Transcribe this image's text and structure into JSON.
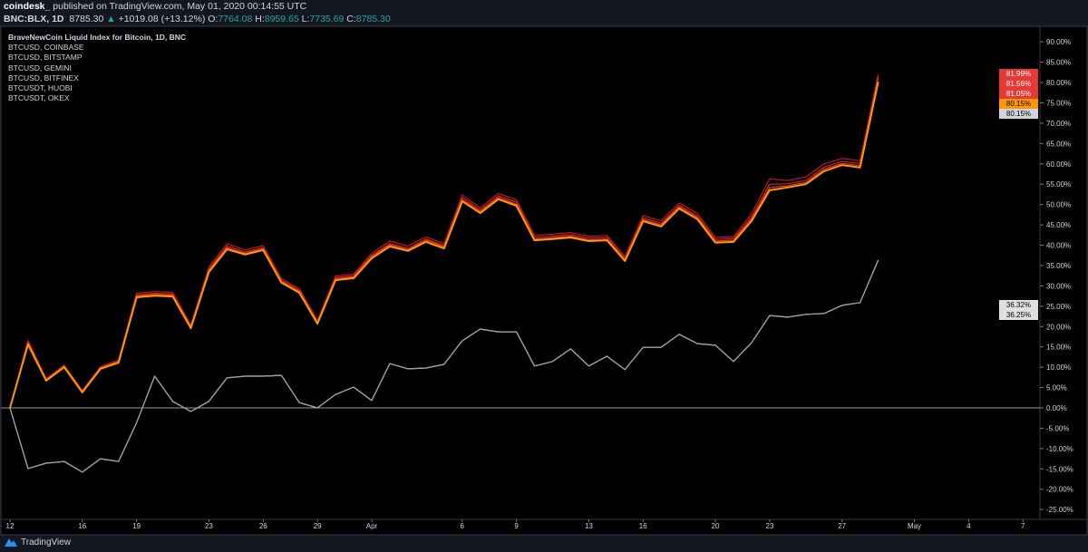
{
  "header": {
    "author": "coindesk_",
    "published": "published on TradingView.com, May 01, 2020 00:14:55 UTC",
    "symbol": "BNC:BLX, 1D",
    "last": "8785.30",
    "change": "+1019.08 (+13.12%)",
    "o_label": "O:",
    "o": "7764.08",
    "h_label": "H:",
    "h": "8959.65",
    "l_label": "L:",
    "l": "7735.69",
    "c_label": "C:",
    "c": "8785.30"
  },
  "legend": {
    "title": "BraveNewCoin Liquid Index for Bitcoin, 1D, BNC",
    "items": [
      "BTCUSD, COINBASE",
      "BTCUSD, BITSTAMP",
      "BTCUSD, GEMINI",
      "BTCUSD, BITFINEX",
      "BTCUSDT, HUOBI",
      "BTCUSDT, OKEX"
    ]
  },
  "footer": {
    "brand": "TradingView",
    "logo_icon": "tradingview-logo-icon"
  },
  "colors": {
    "background": "#000000",
    "panel": "#131722",
    "red": "#e53935",
    "orange": "#ff9800",
    "white": "#d1d4dc",
    "green": "#26a69a"
  },
  "chart_data": {
    "type": "line",
    "ylim": [
      -25,
      90
    ],
    "y_ticks": [
      "90.00%",
      "85.00%",
      "80.00%",
      "75.00%",
      "70.00%",
      "65.00%",
      "60.00%",
      "55.00%",
      "50.00%",
      "45.00%",
      "40.00%",
      "35.00%",
      "30.00%",
      "25.00%",
      "20.00%",
      "15.00%",
      "10.00%",
      "5.00%",
      "0.00%",
      "-5.00%",
      "-10.00%",
      "-15.00%",
      "-20.00%",
      "-25.00%"
    ],
    "x_start": "2020-03-12",
    "x_end_axis": "2020-05-09",
    "x_ticks": [
      {
        "label": "12",
        "date": "2020-03-12"
      },
      {
        "label": "16",
        "date": "2020-03-16"
      },
      {
        "label": "19",
        "date": "2020-03-19"
      },
      {
        "label": "23",
        "date": "2020-03-23"
      },
      {
        "label": "26",
        "date": "2020-03-26"
      },
      {
        "label": "29",
        "date": "2020-03-29"
      },
      {
        "label": "Apr",
        "date": "2020-04-01"
      },
      {
        "label": "6",
        "date": "2020-04-06"
      },
      {
        "label": "9",
        "date": "2020-04-09"
      },
      {
        "label": "13",
        "date": "2020-04-13"
      },
      {
        "label": "16",
        "date": "2020-04-16"
      },
      {
        "label": "20",
        "date": "2020-04-20"
      },
      {
        "label": "23",
        "date": "2020-04-23"
      },
      {
        "label": "27",
        "date": "2020-04-27"
      },
      {
        "label": "May",
        "date": "2020-05-01"
      },
      {
        "label": "4",
        "date": "2020-05-04"
      },
      {
        "label": "7",
        "date": "2020-05-07"
      }
    ],
    "baseline": 0,
    "series": [
      {
        "color": "#b71c1c",
        "last_label": "81.99%",
        "values": [
          0,
          16.6,
          7.2,
          10.5,
          4.3,
          10.1,
          11.8,
          28.2,
          28.6,
          28.4,
          20.4,
          34.6,
          40.4,
          38.8,
          39.9,
          31.8,
          29.3,
          21.5,
          32.4,
          32.9,
          38.0,
          41.0,
          39.8,
          42.0,
          40.4,
          52.3,
          49.2,
          52.7,
          51.2,
          42.4,
          42.7,
          43.1,
          42.2,
          42.4,
          37.2,
          47.3,
          46.0,
          50.4,
          47.8,
          41.9,
          42.1,
          47.7,
          56.3,
          55.9,
          56.8,
          60.0,
          61.3,
          60.8,
          81.99
        ]
      },
      {
        "color": "#c62828",
        "last_label": "81.56%",
        "values": [
          0,
          16.3,
          7.0,
          10.3,
          4.1,
          9.9,
          11.5,
          27.8,
          28.2,
          28.0,
          20.1,
          34.1,
          39.8,
          38.3,
          39.4,
          31.4,
          28.9,
          21.2,
          32.0,
          32.5,
          37.5,
          40.4,
          39.2,
          41.5,
          39.9,
          51.7,
          48.7,
          52.1,
          50.6,
          41.9,
          42.2,
          42.6,
          41.7,
          41.9,
          36.7,
          46.7,
          45.4,
          49.8,
          47.2,
          41.4,
          41.6,
          46.9,
          55.0,
          55.1,
          55.9,
          59.2,
          60.6,
          60.1,
          81.56
        ]
      },
      {
        "color": "#e53935",
        "last_label": "81.05%",
        "values": [
          0,
          16.0,
          6.9,
          10.2,
          4.0,
          9.8,
          11.3,
          27.5,
          27.9,
          27.7,
          19.9,
          33.8,
          39.4,
          38.0,
          39.1,
          31.1,
          28.6,
          21.0,
          31.7,
          32.2,
          37.2,
          40.1,
          38.9,
          41.2,
          39.6,
          51.2,
          48.3,
          51.7,
          50.1,
          41.5,
          41.8,
          42.2,
          41.3,
          41.5,
          36.4,
          46.3,
          45.0,
          49.4,
          46.8,
          41.0,
          41.2,
          46.4,
          54.2,
          54.6,
          55.4,
          58.7,
          60.1,
          59.6,
          81.05
        ]
      },
      {
        "color": "#d1d4dc",
        "last_label": "80.15%",
        "values": [
          0,
          15.6,
          6.7,
          10,
          3.8,
          9.6,
          11.1,
          27.2,
          27.6,
          27.4,
          19.6,
          33.4,
          39,
          37.7,
          38.8,
          30.8,
          28.3,
          20.7,
          31.4,
          31.9,
          36.8,
          39.7,
          38.6,
          40.8,
          39.2,
          50.8,
          47.9,
          51.3,
          49.7,
          41.2,
          41.5,
          41.9,
          41,
          41.2,
          36.1,
          45.9,
          44.6,
          49,
          46.4,
          40.6,
          40.8,
          45.9,
          53.5,
          54.2,
          55,
          58.2,
          59.7,
          59.1,
          80.15
        ]
      },
      {
        "color": "#ff9800",
        "last_label": "80.15%",
        "values": [
          0,
          15.6,
          6.7,
          10,
          3.8,
          9.6,
          11.1,
          27.2,
          27.6,
          27.4,
          19.6,
          33.4,
          39,
          37.7,
          38.8,
          30.8,
          28.3,
          20.7,
          31.4,
          31.9,
          36.8,
          39.7,
          38.6,
          40.8,
          39.2,
          50.8,
          47.9,
          51.3,
          49.7,
          41.2,
          41.5,
          41.9,
          41,
          41.2,
          36.1,
          45.9,
          44.6,
          49,
          46.4,
          40.6,
          40.8,
          45.9,
          53.5,
          54.2,
          55,
          58.2,
          59.7,
          59.1,
          80.15
        ]
      },
      {
        "color": "#9e9e9e",
        "last_label": "36.25%",
        "values": [
          0,
          -14.9,
          -13.6,
          -13.2,
          -15.8,
          -12.5,
          -13.2,
          -3.6,
          7.8,
          1.6,
          -0.9,
          1.6,
          7.4,
          7.8,
          7.8,
          8,
          1.3,
          0,
          3.3,
          5.1,
          1.8,
          10.9,
          9.6,
          9.8,
          10.7,
          16.5,
          19.4,
          18.7,
          18.7,
          10.3,
          11.4,
          14.5,
          10.3,
          12.7,
          9.4,
          14.9,
          14.9,
          18.1,
          15.8,
          15.4,
          11.4,
          16,
          22.7,
          22.3,
          23,
          23.2,
          25.2,
          25.9,
          36.25
        ]
      },
      {
        "color": "#e0e0e0",
        "last_label": "36.32%",
        "values": [
          0,
          -14.9,
          -13.6,
          -13.2,
          -15.8,
          -12.5,
          -13.2,
          -3.6,
          7.8,
          1.6,
          -0.9,
          1.6,
          7.4,
          7.8,
          7.8,
          8,
          1.3,
          0,
          3.3,
          5.1,
          1.8,
          10.9,
          9.6,
          9.8,
          10.7,
          16.5,
          19.4,
          18.7,
          18.7,
          10.3,
          11.4,
          14.5,
          10.3,
          12.7,
          9.4,
          14.9,
          14.9,
          18.1,
          15.8,
          15.4,
          11.4,
          16,
          22.7,
          22.3,
          23,
          23.2,
          25.2,
          25.9,
          36.32
        ]
      }
    ],
    "price_tags": [
      {
        "label": "81.99%",
        "color": "#e53935",
        "text": "#ffffff"
      },
      {
        "label": "81.56%",
        "color": "#e53935",
        "text": "#ffffff"
      },
      {
        "label": "81.05%",
        "color": "#e53935",
        "text": "#ffffff"
      },
      {
        "label": "80.15%",
        "color": "#ff9800",
        "text": "#000000"
      },
      {
        "label": "80.15%",
        "color": "#d1d4dc",
        "text": "#000000"
      },
      {
        "label": "36.32%",
        "color": "#e0e0e0",
        "text": "#000000"
      },
      {
        "label": "36.25%",
        "color": "#e0e0e0",
        "text": "#000000"
      }
    ]
  }
}
